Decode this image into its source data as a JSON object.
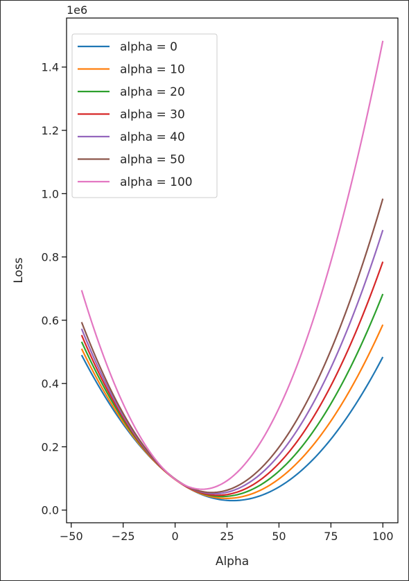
{
  "chart_data": {
    "type": "line",
    "title": "",
    "xlabel": "Alpha",
    "ylabel": "Loss",
    "offset_text": "1e6",
    "x_range": [
      -45,
      100
    ],
    "xlim": [
      -52.25,
      107.25
    ],
    "ylim": [
      -0.04,
      1.555
    ],
    "xticks": [
      -50,
      -25,
      0,
      25,
      50,
      75,
      100
    ],
    "xtick_labels": [
      "−50",
      "−25",
      "0",
      "25",
      "50",
      "75",
      "100"
    ],
    "yticks": [
      0.0,
      0.2,
      0.4,
      0.6,
      0.8,
      1.0,
      1.2,
      1.4
    ],
    "ytick_labels": [
      "0.0",
      "0.2",
      "0.4",
      "0.6",
      "0.8",
      "1.0",
      "1.2",
      "1.4"
    ],
    "grid": false,
    "legend_position": "upper-left",
    "series": [
      {
        "name": "alpha = 0",
        "color": "#1f77b4",
        "x": [
          -45,
          27.5,
          100
        ],
        "y": [
          0.49,
          0.03,
          0.484
        ]
      },
      {
        "name": "alpha = 10",
        "color": "#ff7f0e",
        "x": [
          -45,
          25,
          100
        ],
        "y": [
          0.51,
          0.037,
          0.586
        ]
      },
      {
        "name": "alpha = 20",
        "color": "#2ca02c",
        "x": [
          -45,
          22.5,
          100
        ],
        "y": [
          0.532,
          0.043,
          0.683
        ]
      },
      {
        "name": "alpha = 30",
        "color": "#d62728",
        "x": [
          -45,
          20,
          100
        ],
        "y": [
          0.553,
          0.047,
          0.785
        ]
      },
      {
        "name": "alpha = 40",
        "color": "#9467bd",
        "x": [
          -45,
          18,
          100
        ],
        "y": [
          0.573,
          0.052,
          0.885
        ]
      },
      {
        "name": "alpha = 50",
        "color": "#8c564b",
        "x": [
          -45,
          16,
          100
        ],
        "y": [
          0.594,
          0.056,
          0.984
        ]
      },
      {
        "name": "alpha = 100",
        "color": "#e377c2",
        "x": [
          -45,
          12,
          100
        ],
        "y": [
          0.695,
          0.066,
          1.483
        ]
      }
    ]
  }
}
